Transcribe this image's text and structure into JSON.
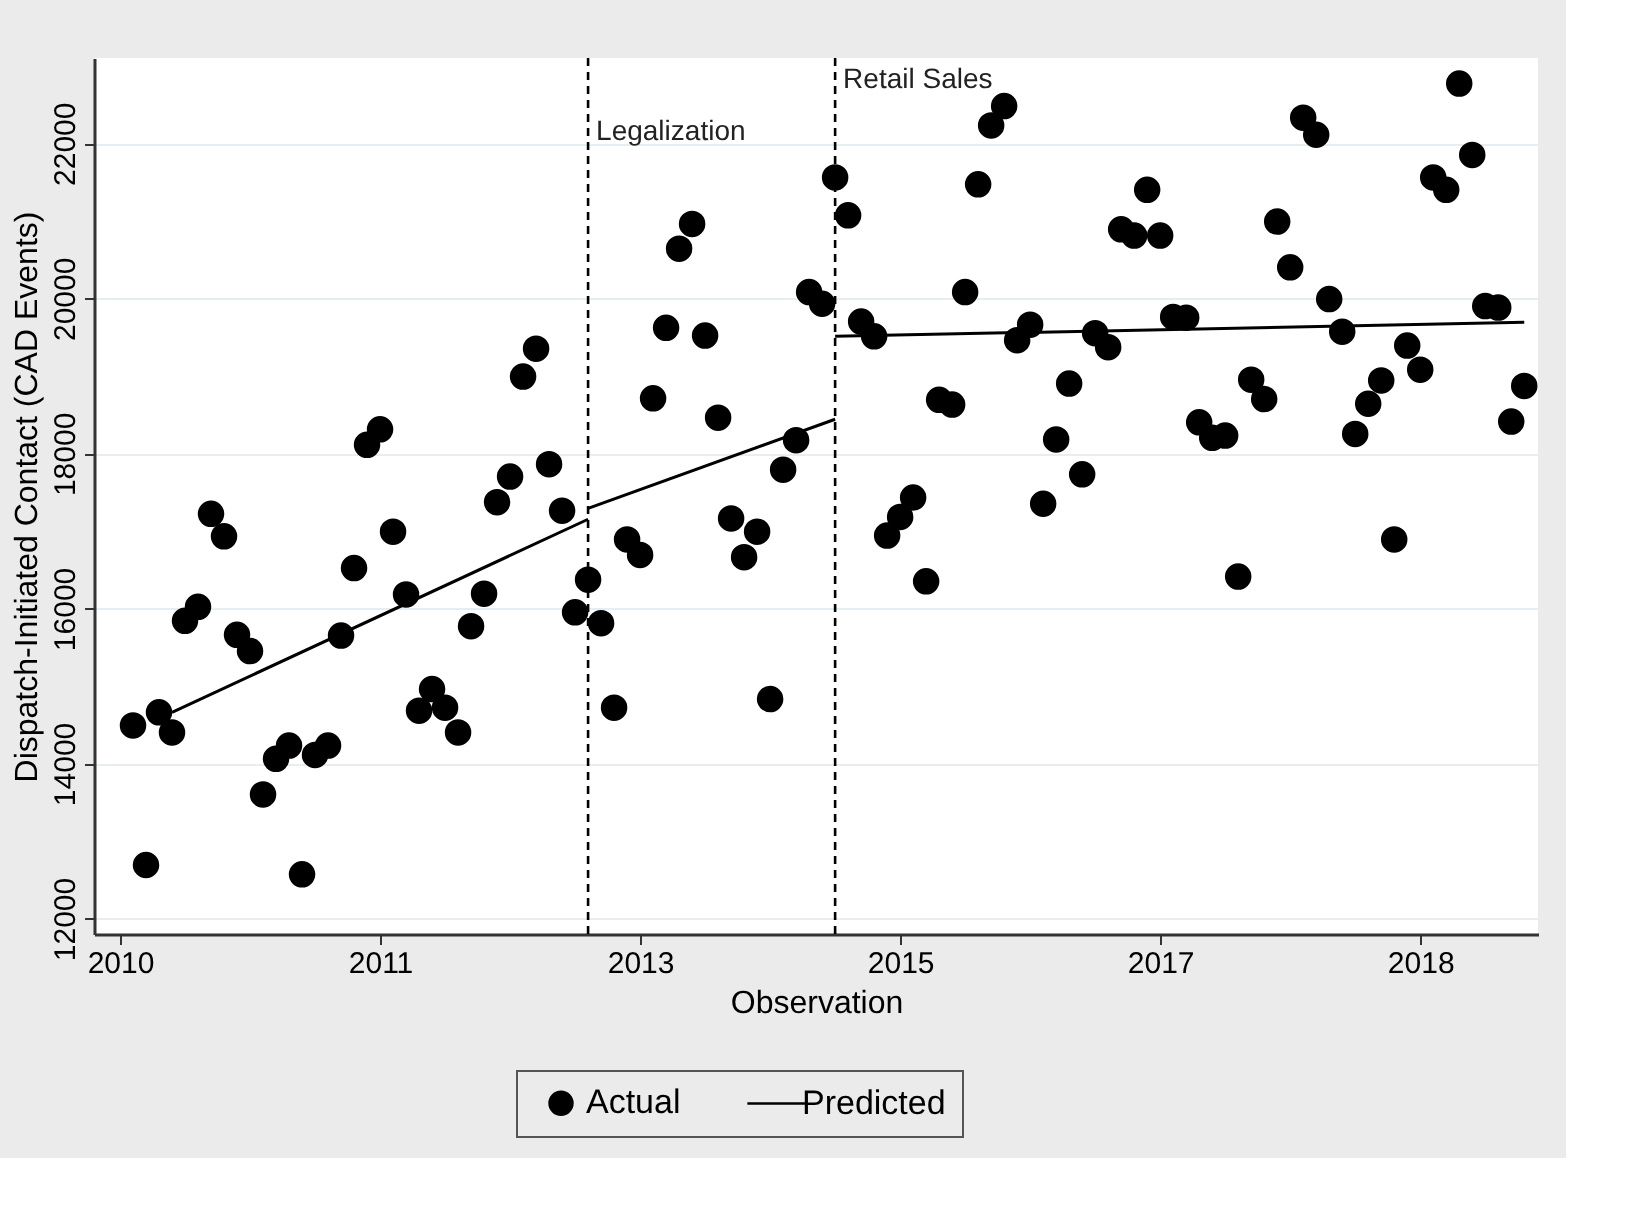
{
  "chart_data": {
    "type": "scatter",
    "xlabel": "Observation",
    "ylabel": "Dispatch-Initiated Contact (CAD Events)",
    "x": [
      2009.835,
      2009.92,
      2010.005,
      2010.09,
      2010.175,
      2010.26,
      2010.345,
      2010.43,
      2010.515,
      2010.6,
      2010.685,
      2010.77,
      2010.855,
      2010.94,
      2011.025,
      2011.11,
      2011.195,
      2011.28,
      2011.365,
      2011.45,
      2011.535,
      2011.62,
      2011.705,
      2011.79,
      2011.875,
      2011.96,
      2012.045,
      2012.13,
      2012.215,
      2012.3,
      2012.385,
      2012.47,
      2012.555,
      2012.64,
      2012.725,
      2012.81,
      2012.895,
      2012.98,
      2013.065,
      2013.15,
      2013.235,
      2013.32,
      2013.405,
      2013.49,
      2013.575,
      2013.66,
      2013.745,
      2013.83,
      2013.915,
      2014.0,
      2014.085,
      2014.17,
      2014.255,
      2014.34,
      2014.425,
      2014.51,
      2014.595,
      2014.68,
      2014.765,
      2014.85,
      2014.935,
      2015.02,
      2015.105,
      2015.19,
      2015.275,
      2015.36,
      2015.445,
      2015.53,
      2015.615,
      2015.7,
      2015.785,
      2015.87,
      2015.955,
      2016.04,
      2016.125,
      2016.21,
      2016.295,
      2016.38,
      2016.465,
      2016.55,
      2016.635,
      2016.72,
      2016.805,
      2016.89,
      2016.975,
      2017.06,
      2017.145,
      2017.23,
      2017.315,
      2017.4,
      2017.485,
      2017.57,
      2017.655,
      2017.74,
      2017.825,
      2017.91,
      2017.995,
      2018.08,
      2018.165,
      2018.25,
      2018.335,
      2018.42,
      2018.505,
      2018.59,
      2018.675,
      2018.76,
      2018.845,
      2018.93
    ],
    "series": [
      {
        "name": "Actual",
        "color": "#000000",
        "marker": "circle",
        "values": [
          14490,
          12690,
          14660,
          14400,
          15840,
          16020,
          17220,
          16930,
          15660,
          15450,
          13600,
          14060,
          14230,
          12570,
          14110,
          14230,
          15650,
          16520,
          18110,
          18310,
          16990,
          16180,
          14680,
          14960,
          14720,
          14400,
          15770,
          16190,
          17370,
          17700,
          18990,
          19350,
          17860,
          17260,
          15950,
          16370,
          15810,
          14720,
          16890,
          16690,
          18710,
          19620,
          20640,
          20960,
          19520,
          18460,
          17160,
          16660,
          16990,
          14830,
          17790,
          18170,
          20080,
          19930,
          21560,
          21070,
          19700,
          19510,
          16940,
          17180,
          17430,
          16350,
          18690,
          18630,
          20080,
          21470,
          22230,
          22480,
          19460,
          19660,
          17350,
          18180,
          18900,
          17730,
          19550,
          19370,
          20890,
          20810,
          21400,
          20810,
          19760,
          19750,
          18400,
          18200,
          18230,
          16410,
          18950,
          18700,
          20990,
          20400,
          22330,
          22110,
          19990,
          19570,
          18250,
          18640,
          18940,
          16890,
          19390,
          19080,
          21560,
          21400,
          22770,
          21850,
          19900,
          19880,
          18410,
          18870
        ]
      },
      {
        "name": "Predicted",
        "type": "line",
        "color": "#000000",
        "line_style": "solid",
        "x": [
          2010.09,
          2012.81
        ],
        "values": [
          14660,
          17150
        ]
      },
      {
        "type": "line",
        "color": "#000000",
        "line_style": "solid",
        "x": [
          2012.81,
          2014.425
        ],
        "values": [
          17290,
          18440
        ]
      },
      {
        "type": "line",
        "color": "#000000",
        "line_style": "solid",
        "x": [
          2014.425,
          2018.93
        ],
        "values": [
          19510,
          19690
        ]
      }
    ],
    "xlim": [
      2009.58,
      2019.02
    ],
    "ylim": [
      11800,
      23100
    ],
    "xticks": [
      {
        "value": 2009.75,
        "label": "2010"
      },
      {
        "value": 2011.45,
        "label": "2011"
      },
      {
        "value": 2013.15,
        "label": "2013"
      },
      {
        "value": 2014.85,
        "label": "2015"
      },
      {
        "value": 2016.55,
        "label": "2017"
      },
      {
        "value": 2018.25,
        "label": "2018"
      }
    ],
    "yticks": [
      12000,
      14000,
      16000,
      18000,
      20000,
      22000
    ],
    "ref_lines": [
      {
        "axis": "x",
        "value": 2012.81,
        "label": "Legalization",
        "color": "#000000",
        "line_style": "dashed"
      },
      {
        "axis": "x",
        "value": 2014.425,
        "label": "Retail Sales",
        "color": "#000000",
        "line_style": "dashed"
      }
    ],
    "grid": "y",
    "legend": "bottom"
  }
}
